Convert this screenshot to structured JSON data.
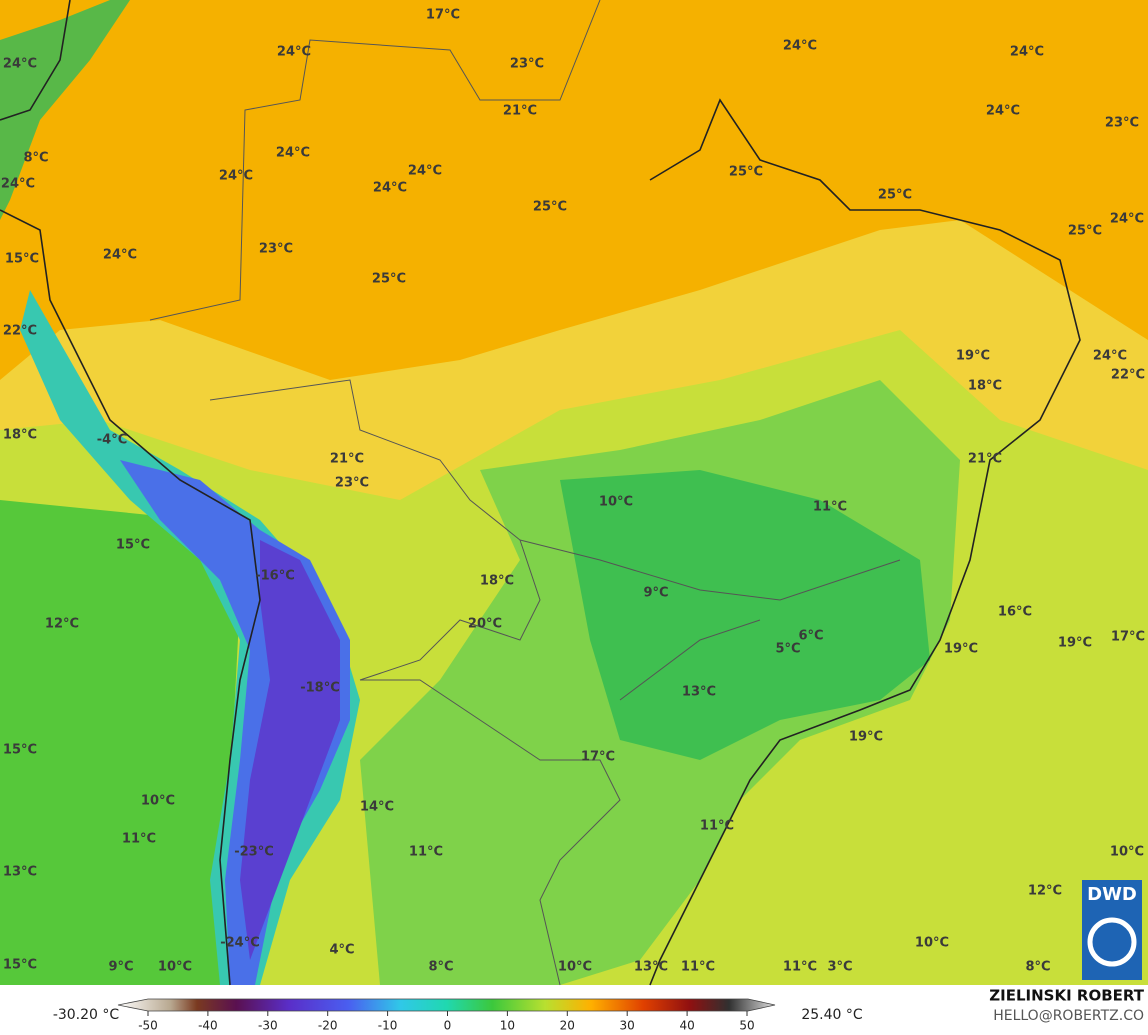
{
  "map": {
    "labels": [
      "17°C",
      "24°C",
      "23°C",
      "24°C",
      "24°C",
      "24°C",
      "21°C",
      "24°C",
      "23°C",
      "8°C",
      "24°C",
      "24°C",
      "24°C",
      "24°C",
      "25°C",
      "25°C",
      "24°C",
      "25°C",
      "24°C",
      "25°C",
      "24°C",
      "23°C",
      "15°C",
      "25°C",
      "22°C",
      "19°C",
      "18°C",
      "24°C",
      "22°C",
      "18°C",
      "-4°C",
      "21°C",
      "21°C",
      "23°C",
      "10°C",
      "11°C",
      "15°C",
      "-16°C",
      "18°C",
      "9°C",
      "16°C",
      "12°C",
      "20°C",
      "6°C",
      "19°C",
      "17°C",
      "19°C",
      "5°C",
      "-18°C",
      "13°C",
      "15°C",
      "19°C",
      "17°C",
      "10°C",
      "14°C",
      "11°C",
      "11°C",
      "11°C",
      "-23°C",
      "10°C",
      "13°C",
      "12°C",
      "-24°C",
      "10°C",
      "4°C",
      "9°C",
      "10°C",
      "8°C",
      "10°C",
      "13°C",
      "11°C",
      "11°C",
      "3°C",
      "8°C",
      "15°C"
    ],
    "logo": "DWD",
    "author": "ZIELINSKI ROBERT",
    "contact": "HELLO@ROBERTZ.CO"
  },
  "colorbar": {
    "min_label": "-30.20 °C",
    "max_label": "25.40 °C",
    "ticks": [
      -50,
      -40,
      -30,
      -20,
      -10,
      0,
      10,
      20,
      30,
      40,
      50
    ]
  }
}
